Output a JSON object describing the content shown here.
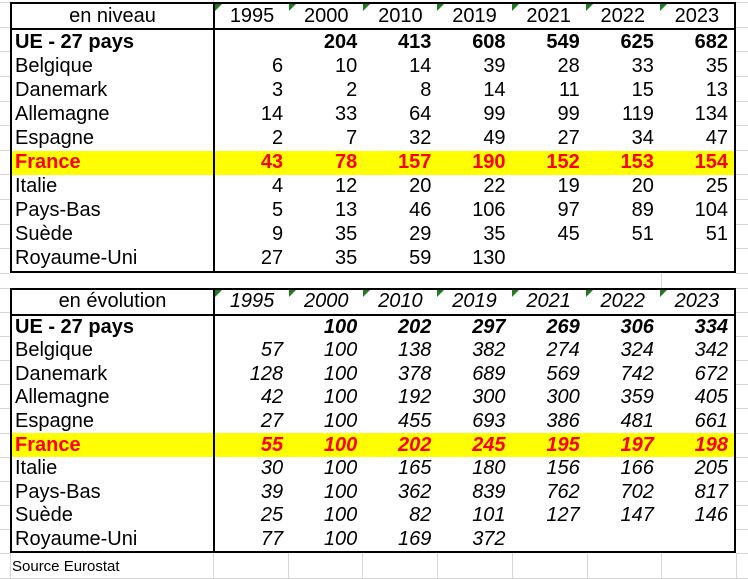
{
  "sheet": {
    "years": [
      "1995",
      "2000",
      "2010",
      "2019",
      "2021",
      "2022",
      "2023"
    ],
    "tables": [
      {
        "title": "en niveau",
        "rows": [
          {
            "label": "UE - 27 pays",
            "emphasis": "total",
            "values": [
              "",
              "204",
              "413",
              "608",
              "549",
              "625",
              "682"
            ]
          },
          {
            "label": "Belgique",
            "emphasis": "normal",
            "values": [
              "6",
              "10",
              "14",
              "39",
              "28",
              "33",
              "35"
            ]
          },
          {
            "label": "Danemark",
            "emphasis": "normal",
            "values": [
              "3",
              "2",
              "8",
              "14",
              "11",
              "15",
              "13"
            ]
          },
          {
            "label": "Allemagne",
            "emphasis": "normal",
            "values": [
              "14",
              "33",
              "64",
              "99",
              "99",
              "119",
              "134"
            ]
          },
          {
            "label": "Espagne",
            "emphasis": "normal",
            "values": [
              "2",
              "7",
              "32",
              "49",
              "27",
              "34",
              "47"
            ]
          },
          {
            "label": "France",
            "emphasis": "highlight",
            "values": [
              "43",
              "78",
              "157",
              "190",
              "152",
              "153",
              "154"
            ]
          },
          {
            "label": "Italie",
            "emphasis": "normal",
            "values": [
              "4",
              "12",
              "20",
              "22",
              "19",
              "20",
              "25"
            ]
          },
          {
            "label": "Pays-Bas",
            "emphasis": "normal",
            "values": [
              "5",
              "13",
              "46",
              "106",
              "97",
              "89",
              "104"
            ]
          },
          {
            "label": "Suède",
            "emphasis": "normal",
            "values": [
              "9",
              "35",
              "29",
              "35",
              "45",
              "51",
              "51"
            ]
          },
          {
            "label": "Royaume-Uni",
            "emphasis": "normal",
            "values": [
              "27",
              "35",
              "59",
              "130",
              "",
              "",
              ""
            ]
          }
        ]
      },
      {
        "title": "en évolution",
        "rows": [
          {
            "label": "UE - 27 pays",
            "emphasis": "total",
            "values": [
              "",
              "100",
              "202",
              "297",
              "269",
              "306",
              "334"
            ]
          },
          {
            "label": "Belgique",
            "emphasis": "normal",
            "values": [
              "57",
              "100",
              "138",
              "382",
              "274",
              "324",
              "342"
            ]
          },
          {
            "label": "Danemark",
            "emphasis": "normal",
            "values": [
              "128",
              "100",
              "378",
              "689",
              "569",
              "742",
              "672"
            ]
          },
          {
            "label": "Allemagne",
            "emphasis": "normal",
            "values": [
              "42",
              "100",
              "192",
              "300",
              "300",
              "359",
              "405"
            ]
          },
          {
            "label": "Espagne",
            "emphasis": "normal",
            "values": [
              "27",
              "100",
              "455",
              "693",
              "386",
              "481",
              "661"
            ]
          },
          {
            "label": "France",
            "emphasis": "highlight",
            "values": [
              "55",
              "100",
              "202",
              "245",
              "195",
              "197",
              "198"
            ]
          },
          {
            "label": "Italie",
            "emphasis": "normal",
            "values": [
              "30",
              "100",
              "165",
              "180",
              "156",
              "166",
              "205"
            ]
          },
          {
            "label": "Pays-Bas",
            "emphasis": "normal",
            "values": [
              "39",
              "100",
              "362",
              "839",
              "762",
              "702",
              "817"
            ]
          },
          {
            "label": "Suède",
            "emphasis": "normal",
            "values": [
              "25",
              "100",
              "82",
              "101",
              "127",
              "147",
              "146"
            ]
          },
          {
            "label": "Royaume-Uni",
            "emphasis": "normal",
            "values": [
              "77",
              "100",
              "169",
              "372",
              "",
              "",
              ""
            ]
          }
        ]
      }
    ],
    "source": "Source Eurostat",
    "colors": {
      "highlight_bg": "#ffff00",
      "highlight_text": "#ff0000",
      "error_triangle": "#1e7d1e",
      "gridline": "#d6d6d6",
      "table_border": "#000000"
    }
  }
}
